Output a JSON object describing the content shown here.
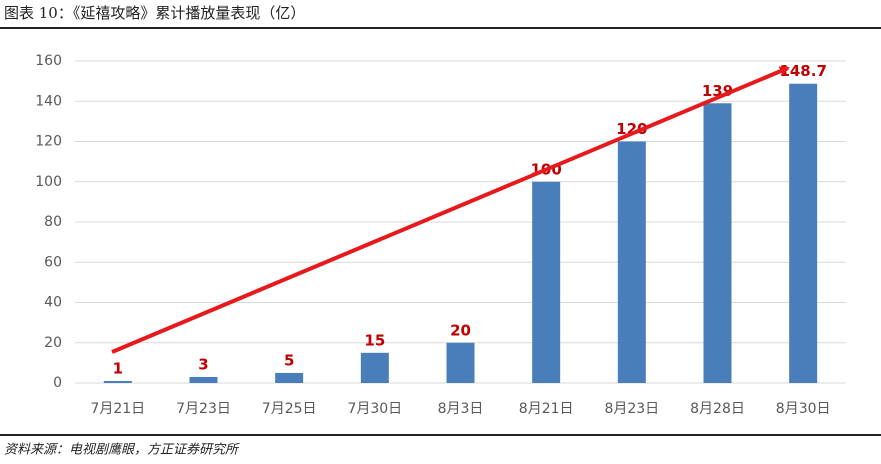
{
  "chart_data": {
    "type": "bar",
    "title": "图表 10：《延禧攻略》累计播放量表现（亿）",
    "source": "资料来源：电视剧鹰眼，方正证券研究所",
    "categories": [
      "7月21日",
      "7月23日",
      "7月25日",
      "7月30日",
      "8月3日",
      "8月21日",
      "8月23日",
      "8月28日",
      "8月30日"
    ],
    "values": [
      1,
      3,
      5,
      15,
      20,
      100,
      120,
      139,
      148.7
    ],
    "color": "#4a7ebb",
    "label_color": "#c00000",
    "ylim": [
      0,
      160
    ],
    "yticks": [
      0,
      20,
      40,
      60,
      80,
      100,
      120,
      140,
      160
    ],
    "grid": true
  }
}
